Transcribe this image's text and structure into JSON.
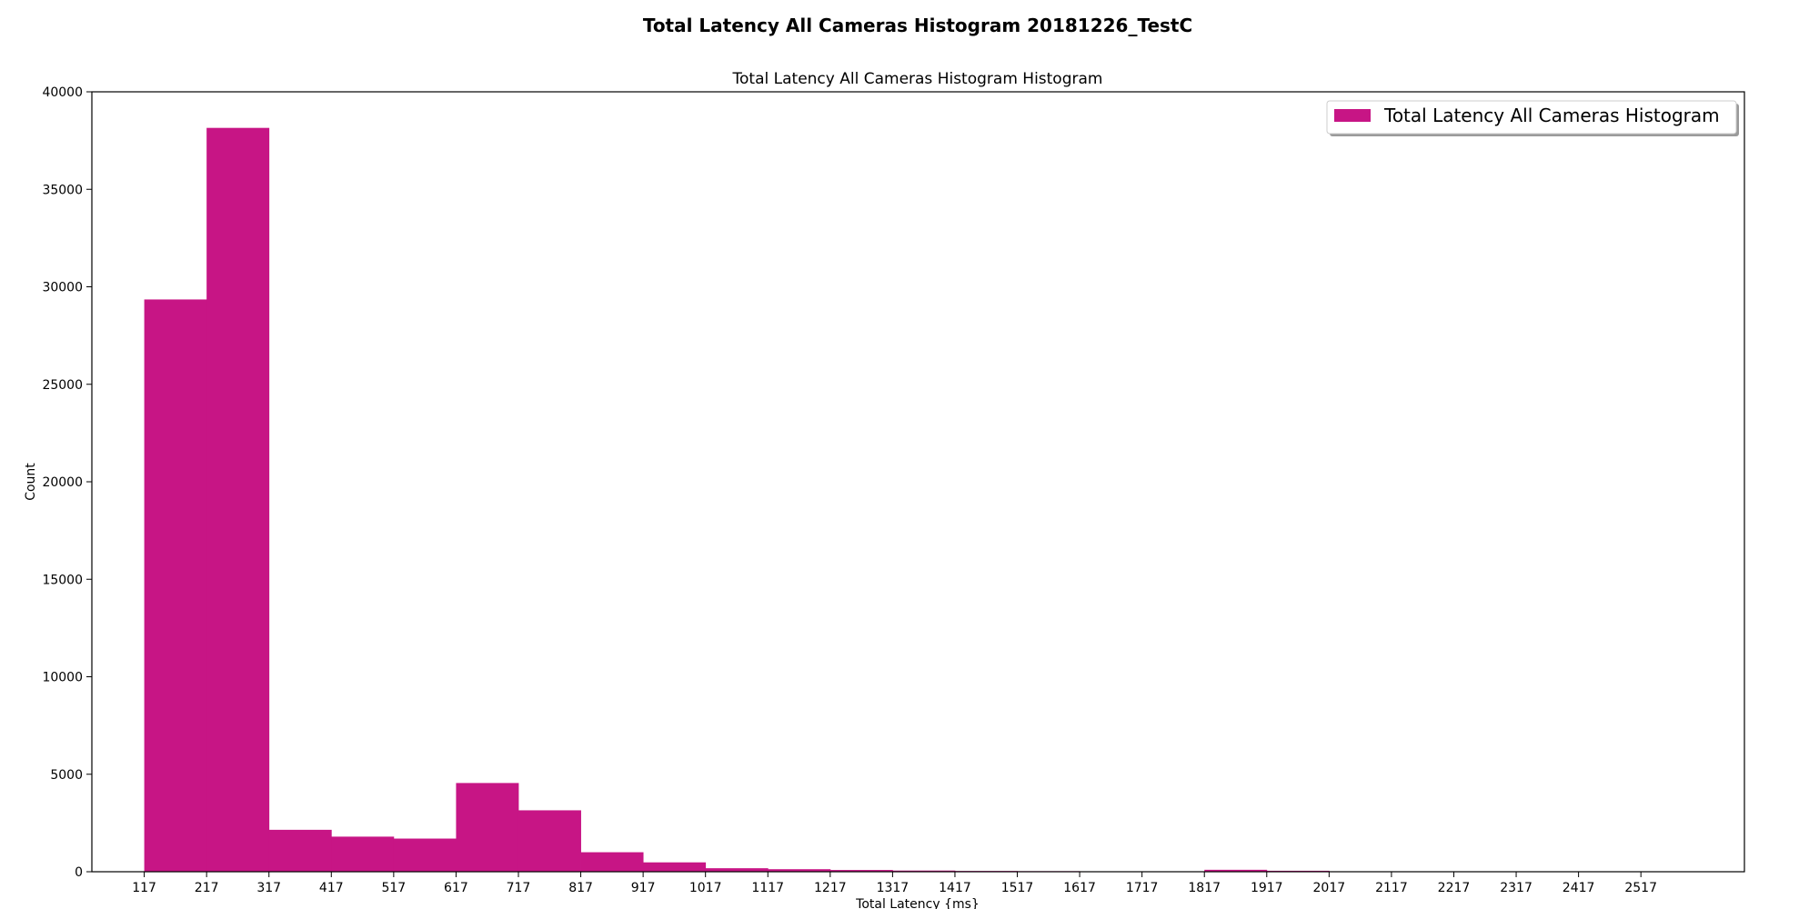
{
  "chart_data": {
    "type": "bar",
    "title": "Total Latency All Cameras Histogram 20181226_TestC",
    "subtitle": "Total Latency All Cameras Histogram Histogram",
    "xlabel": "Total Latency {ms}",
    "ylabel": "Count",
    "xlim": [
      33,
      2683
    ],
    "ylim": [
      0,
      40000
    ],
    "xticks": [
      117,
      217,
      317,
      417,
      517,
      617,
      717,
      817,
      917,
      1017,
      1117,
      1217,
      1317,
      1417,
      1517,
      1617,
      1717,
      1817,
      1917,
      2017,
      2117,
      2217,
      2317,
      2417,
      2517
    ],
    "yticks": [
      0,
      5000,
      10000,
      15000,
      20000,
      25000,
      30000,
      35000,
      40000
    ],
    "bin_edges": [
      117,
      217,
      317,
      417,
      517,
      617,
      717,
      817,
      917,
      1017,
      1117,
      1217,
      1317,
      1417,
      1517,
      1617,
      1717,
      1817,
      1917,
      2017
    ],
    "counts": [
      29350,
      38150,
      2150,
      1800,
      1700,
      4550,
      3150,
      1000,
      480,
      180,
      130,
      90,
      60,
      40,
      30,
      20,
      0,
      100,
      50
    ],
    "grid": false,
    "legend": {
      "placement": "top-right",
      "entries": [
        "Total Latency All Cameras Histogram"
      ]
    },
    "bar_color": "#c71585"
  }
}
